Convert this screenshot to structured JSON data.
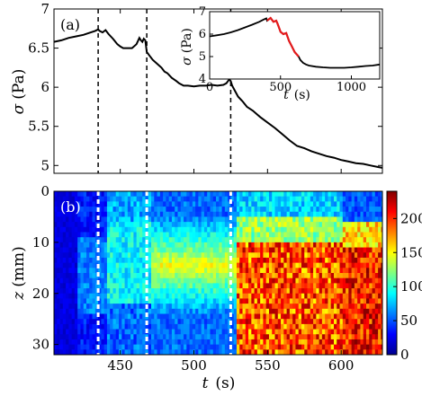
{
  "chart_data": [
    {
      "type": "line",
      "panel_label": "(a)",
      "xlabel": "",
      "ylabel_symbol": "σ",
      "ylabel_unit": "(Pa)",
      "xlim": [
        405,
        628
      ],
      "ylim": [
        4.9,
        7.0
      ],
      "yticks": [
        5,
        5.5,
        6,
        6.5,
        7
      ],
      "ytick_labels": [
        "5",
        "5.5",
        "6",
        "6.5",
        "7"
      ],
      "grid": false,
      "line_color": "#000000",
      "markers_dashed_x": [
        435,
        468,
        525
      ],
      "series": [
        {
          "x": [
            405,
            410,
            415,
            420,
            425,
            430,
            433,
            435,
            436,
            438,
            440,
            442,
            445,
            448,
            450,
            452,
            455,
            458,
            461,
            463,
            464,
            465,
            466,
            467,
            468,
            470,
            472,
            475,
            478,
            480,
            482,
            485,
            488,
            490,
            493,
            496,
            500,
            504,
            508,
            512,
            516,
            520,
            522,
            524,
            525,
            526,
            528,
            530,
            533,
            536,
            540,
            545,
            550,
            555,
            560,
            565,
            570,
            575,
            580,
            585,
            590,
            595,
            600,
            605,
            610,
            615,
            620,
            625,
            628
          ],
          "y": [
            6.58,
            6.6,
            6.63,
            6.65,
            6.67,
            6.7,
            6.72,
            6.74,
            6.72,
            6.7,
            6.73,
            6.68,
            6.62,
            6.55,
            6.52,
            6.5,
            6.5,
            6.5,
            6.55,
            6.63,
            6.6,
            6.58,
            6.62,
            6.6,
            6.45,
            6.4,
            6.35,
            6.3,
            6.25,
            6.2,
            6.18,
            6.12,
            6.08,
            6.05,
            6.02,
            6.02,
            6.01,
            6.02,
            6.02,
            6.03,
            6.02,
            6.03,
            6.05,
            6.1,
            6.08,
            6.02,
            5.95,
            5.88,
            5.82,
            5.75,
            5.7,
            5.62,
            5.55,
            5.48,
            5.4,
            5.32,
            5.25,
            5.22,
            5.18,
            5.15,
            5.12,
            5.1,
            5.07,
            5.05,
            5.03,
            5.02,
            5.0,
            4.98,
            4.97
          ]
        }
      ]
    },
    {
      "type": "line",
      "inset": true,
      "xlabel_symbol": "t",
      "xlabel_unit": "(s)",
      "ylabel_symbol": "σ",
      "ylabel_unit": "(Pa)",
      "xlim": [
        0,
        1200
      ],
      "ylim": [
        4,
        7
      ],
      "xticks": [
        0,
        500,
        1000
      ],
      "xtick_labels": [
        "0",
        "500",
        "1000"
      ],
      "yticks": [
        4,
        5,
        6,
        7
      ],
      "ytick_labels": [
        "4",
        "5",
        "6",
        "7"
      ],
      "grid": false,
      "base_color": "#000000",
      "highlight_color": "#e41a1c",
      "highlight_range": [
        405,
        628
      ],
      "series": [
        {
          "x": [
            0,
            50,
            100,
            150,
            200,
            250,
            300,
            350,
            380,
            400,
            405,
            430,
            450,
            470,
            480,
            500,
            520,
            540,
            560,
            580,
            600,
            628,
            640,
            660,
            680,
            700,
            750,
            800,
            850,
            900,
            950,
            1000,
            1050,
            1100,
            1150,
            1200
          ],
          "y": [
            5.9,
            5.95,
            6.0,
            6.08,
            6.18,
            6.3,
            6.42,
            6.55,
            6.65,
            6.7,
            6.6,
            6.72,
            6.55,
            6.6,
            6.45,
            6.1,
            6.0,
            6.05,
            5.7,
            5.45,
            5.2,
            5.0,
            4.85,
            4.72,
            4.65,
            4.6,
            4.55,
            4.52,
            4.5,
            4.5,
            4.5,
            4.52,
            4.55,
            4.58,
            4.6,
            4.65
          ]
        }
      ]
    },
    {
      "type": "heatmap",
      "panel_label": "(b)",
      "xlabel_symbol": "t",
      "xlabel_unit": "(s)",
      "ylabel_symbol": "z",
      "ylabel_unit": "(mm)",
      "xlim": [
        405,
        628
      ],
      "ylim": [
        0,
        32
      ],
      "y_inverted": true,
      "xticks": [
        450,
        500,
        550,
        600
      ],
      "xtick_labels": [
        "450",
        "500",
        "550",
        "600"
      ],
      "yticks": [
        0,
        10,
        20,
        30
      ],
      "ytick_labels": [
        "0",
        "10",
        "20",
        "30"
      ],
      "colormap": "jet",
      "clim": [
        0,
        240
      ],
      "colorbar_ticks": [
        0,
        50,
        100,
        150,
        200
      ],
      "colorbar_tick_labels": [
        "0",
        "50",
        "100",
        "150",
        "200"
      ],
      "markers_dashed_x": [
        435,
        468,
        525
      ],
      "marker_color": "#ffffff"
    }
  ]
}
